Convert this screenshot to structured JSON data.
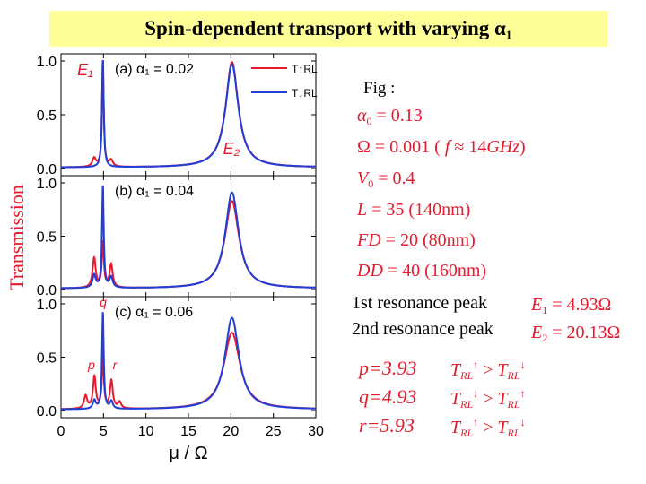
{
  "title": "Spin-dependent transport with varying α₁",
  "chart_data": [
    {
      "type": "line",
      "panel_label": "(a) α₁ = 0.02",
      "xlim": [
        0,
        30
      ],
      "ylim": [
        0,
        1
      ],
      "ylabel": "Transmission",
      "yticks": [
        "0.0",
        "0.5",
        "1.0"
      ],
      "annotations": [
        "E₁",
        "E₂"
      ],
      "legend": [
        "T↑RL",
        "T↓RL"
      ],
      "legend_position": "top-right",
      "series": [
        {
          "color": "#e8192c",
          "peaks": [
            {
              "x": 3.9,
              "h": 0.08,
              "w": 0.25
            },
            {
              "x": 4.93,
              "h": 1.0,
              "w": 0.12
            },
            {
              "x": 5.9,
              "h": 0.06,
              "w": 0.25
            },
            {
              "x": 20.13,
              "h": 0.98,
              "w": 0.9
            }
          ]
        },
        {
          "color": "#1f3fd8",
          "peaks": [
            {
              "x": 4.93,
              "h": 1.0,
              "w": 0.12
            },
            {
              "x": 20.13,
              "h": 0.96,
              "w": 0.9
            }
          ]
        }
      ]
    },
    {
      "type": "line",
      "panel_label": "(b) α₁ = 0.04",
      "xlim": [
        0,
        30
      ],
      "ylim": [
        0,
        1
      ],
      "yticks": [
        "0.0",
        "0.5",
        "1.0"
      ],
      "series": [
        {
          "color": "#e8192c",
          "peaks": [
            {
              "x": 3.9,
              "h": 0.28,
              "w": 0.22
            },
            {
              "x": 4.93,
              "h": 0.42,
              "w": 0.14
            },
            {
              "x": 5.9,
              "h": 0.22,
              "w": 0.22
            },
            {
              "x": 20.13,
              "h": 0.82,
              "w": 1.0
            }
          ]
        },
        {
          "color": "#1f3fd8",
          "peaks": [
            {
              "x": 3.9,
              "h": 0.12,
              "w": 0.22
            },
            {
              "x": 4.93,
              "h": 0.95,
              "w": 0.12
            },
            {
              "x": 5.9,
              "h": 0.1,
              "w": 0.22
            },
            {
              "x": 20.13,
              "h": 0.9,
              "w": 0.95
            }
          ]
        }
      ]
    },
    {
      "type": "line",
      "panel_label": "(c) α₁ = 0.06",
      "xlim": [
        0,
        30
      ],
      "ylim": [
        0,
        1
      ],
      "xlabel": "μ / Ω",
      "xticks": [
        "0",
        "5",
        "10",
        "15",
        "20",
        "25",
        "30"
      ],
      "yticks": [
        "0.0",
        "0.5",
        "1.0"
      ],
      "annotations": [
        "q",
        "p",
        "r"
      ],
      "series": [
        {
          "color": "#e8192c",
          "peaks": [
            {
              "x": 2.9,
              "h": 0.12,
              "w": 0.22
            },
            {
              "x": 3.93,
              "h": 0.3,
              "w": 0.2
            },
            {
              "x": 4.93,
              "h": 0.46,
              "w": 0.14
            },
            {
              "x": 5.93,
              "h": 0.26,
              "w": 0.2
            },
            {
              "x": 6.9,
              "h": 0.06,
              "w": 0.22
            },
            {
              "x": 20.13,
              "h": 0.72,
              "w": 1.15
            }
          ]
        },
        {
          "color": "#1f3fd8",
          "peaks": [
            {
              "x": 3.93,
              "h": 0.08,
              "w": 0.2
            },
            {
              "x": 4.93,
              "h": 0.9,
              "w": 0.12
            },
            {
              "x": 5.93,
              "h": 0.07,
              "w": 0.2
            },
            {
              "x": 20.13,
              "h": 0.86,
              "w": 1.0
            }
          ]
        }
      ]
    }
  ],
  "params": {
    "fig_label": "Fig :",
    "alpha0": {
      "sym": "α",
      "sub": "0",
      "val": "= 0.13"
    },
    "omega": {
      "text": "Ω = 0.001 (",
      "f": "f",
      "approx": "≈ 14",
      "ghz": "GHz",
      "close": ")"
    },
    "v0": {
      "sym": "V",
      "sub": "0",
      "val": "= 0.4"
    },
    "L": {
      "sym": "L",
      "val": "= 35 (140nm)"
    },
    "FD": {
      "sym": "FD",
      "val": "= 20 (80nm)"
    },
    "DD": {
      "sym": "DD",
      "val": "= 40 (160nm)"
    }
  },
  "resonances": {
    "r1_label": "1st resonance peak",
    "r1_sym": "E",
    "r1_sub": "1",
    "r1_val": "= 4.93Ω",
    "r2_label": "2nd resonance peak",
    "r2_sym": "E",
    "r2_sub": "2",
    "r2_val": "= 20.13Ω"
  },
  "points": [
    {
      "label": "p=3.93",
      "T": "T",
      "sub": "RL",
      "relation": ">"
    },
    {
      "label": "q=4.93",
      "T": "T",
      "sub": "RL",
      "relation": ">"
    },
    {
      "label": "r=5.93",
      "T": "T",
      "sub": "RL",
      "relation": ">"
    }
  ]
}
